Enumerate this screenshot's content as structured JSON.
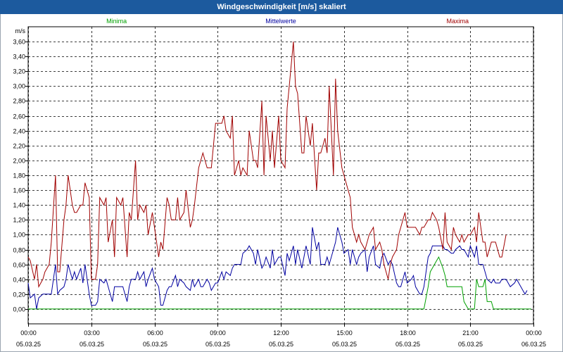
{
  "window": {
    "title": "Windgeschwindigkeit [m/s] skaliert"
  },
  "colors": {
    "title_bar": "#1c5a9e",
    "minima": "#00a000",
    "mittelwerte": "#0000a0",
    "maxima": "#a00000",
    "grid": "#000000"
  },
  "chart_data": {
    "type": "line",
    "title": "Windgeschwindigkeit [m/s] skaliert",
    "ylabel": "m/s",
    "ylim": [
      -0.2,
      3.8
    ],
    "y_ticks": [
      "0,00",
      "0,20",
      "0,40",
      "0,60",
      "0,80",
      "1,00",
      "1,20",
      "1,40",
      "1,60",
      "1,80",
      "2,00",
      "2,20",
      "2,40",
      "2,60",
      "2,80",
      "3,00",
      "3,20",
      "3,40",
      "3,60"
    ],
    "x_ticks": [
      {
        "time": "00:00",
        "date": "05.03.25"
      },
      {
        "time": "03:00",
        "date": "05.03.25"
      },
      {
        "time": "06:00",
        "date": "05.03.25"
      },
      {
        "time": "09:00",
        "date": "05.03.25"
      },
      {
        "time": "12:00",
        "date": "05.03.25"
      },
      {
        "time": "15:00",
        "date": "05.03.25"
      },
      {
        "time": "18:00",
        "date": "05.03.25"
      },
      {
        "time": "21:00",
        "date": "05.03.25"
      },
      {
        "time": "00:00",
        "date": "06.03.25"
      }
    ],
    "x_hours": [
      0,
      0.1,
      0.3,
      0.4,
      0.5,
      0.7,
      0.8,
      1.0,
      1.1,
      1.3,
      1.4,
      1.5,
      1.7,
      1.8,
      1.9,
      2.1,
      2.2,
      2.3,
      2.5,
      2.6,
      2.7,
      2.9,
      3.0,
      3.2,
      3.3,
      3.4,
      3.6,
      3.7,
      3.8,
      4.0,
      4.1,
      4.2,
      4.4,
      4.5,
      4.7,
      4.8,
      4.9,
      5.1,
      5.2,
      5.3,
      5.5,
      5.6,
      5.7,
      5.9,
      6.0,
      6.2,
      6.3,
      6.4,
      6.6,
      6.7,
      6.8,
      7.0,
      7.1,
      7.2,
      7.4,
      7.5,
      7.7,
      7.8,
      7.9,
      8.1,
      8.2,
      8.3,
      8.5,
      8.6,
      8.7,
      8.9,
      9.0,
      9.2,
      9.3,
      9.4,
      9.6,
      9.7,
      9.8,
      10.0,
      10.1,
      10.2,
      10.4,
      10.5,
      10.7,
      10.8,
      10.9,
      11.1,
      11.2,
      11.3,
      11.5,
      11.6,
      11.7,
      11.9,
      12.0,
      12.2,
      12.3,
      12.4,
      12.6,
      12.7,
      12.8,
      13.0,
      13.1,
      13.2,
      13.4,
      13.5,
      13.7,
      13.8,
      13.9,
      14.1,
      14.2,
      14.3,
      14.5,
      14.6,
      14.7,
      14.9,
      15.0,
      15.2,
      15.3,
      15.4,
      15.6,
      15.7,
      15.8,
      16.0,
      16.1,
      16.2,
      16.4,
      16.5,
      16.7,
      16.8,
      16.9,
      17.1,
      17.2,
      17.3,
      17.5,
      17.6,
      17.7,
      17.9,
      18.0,
      18.2,
      18.3,
      18.4,
      18.6,
      18.7,
      18.8,
      19.0,
      19.1,
      19.2,
      19.4,
      19.5,
      19.7,
      19.8,
      19.9,
      20.1,
      20.2,
      20.3,
      20.5,
      20.6,
      20.7,
      20.9,
      21.0,
      21.2,
      21.3,
      21.4,
      21.6,
      21.7,
      21.8,
      22.0,
      22.1,
      22.2,
      22.4,
      22.5,
      22.7,
      22.8,
      22.9,
      23.1,
      23.2,
      23.3,
      23.5,
      23.6,
      23.7,
      23.9
    ],
    "series": [
      {
        "name": "Minima",
        "color": "#00a000",
        "values": [
          0,
          0,
          0,
          0,
          0,
          0,
          0,
          0,
          0,
          0,
          0,
          0,
          0,
          0,
          0,
          0,
          0,
          0,
          0,
          0,
          0,
          0,
          0,
          0,
          0,
          0,
          0,
          0,
          0,
          0,
          0,
          0,
          0,
          0,
          0,
          0,
          0,
          0,
          0,
          0,
          0,
          0,
          0,
          0,
          0,
          0,
          0,
          0,
          0,
          0,
          0,
          0,
          0,
          0,
          0,
          0,
          0,
          0,
          0,
          0,
          0,
          0,
          0,
          0,
          0,
          0,
          0,
          0,
          0,
          0,
          0,
          0,
          0,
          0,
          0,
          0,
          0,
          0,
          0,
          0,
          0,
          0,
          0,
          0,
          0,
          0,
          0,
          0,
          0,
          0,
          0,
          0,
          0,
          0,
          0,
          0,
          0,
          0,
          0,
          0,
          0,
          0,
          0,
          0,
          0,
          0,
          0,
          0,
          0,
          0,
          0,
          0,
          0,
          0,
          0,
          0,
          0,
          0,
          0,
          0,
          0,
          0,
          0,
          0,
          0,
          0,
          0,
          0,
          0,
          0,
          0,
          0,
          0,
          0,
          0,
          0,
          0,
          0,
          0,
          0.3,
          0.5,
          0.55,
          0.65,
          0.7,
          0.55,
          0.45,
          0.3,
          0.3,
          0.3,
          0.3,
          0.3,
          0.3,
          0.1,
          0,
          0,
          0,
          0.4,
          0.3,
          0.3,
          0.4,
          0.1,
          0.1,
          0,
          0,
          0,
          0,
          0,
          0,
          0,
          0,
          0,
          0,
          0,
          0,
          0,
          0
        ]
      },
      {
        "name": "Mittelwerte",
        "color": "#0000a0",
        "values": [
          0.35,
          0.15,
          0.2,
          0.0,
          0.15,
          0.2,
          0.2,
          0.2,
          0.2,
          0.6,
          0.2,
          0.25,
          0.3,
          0.4,
          0.6,
          0.4,
          0.5,
          0.4,
          0.55,
          0.35,
          0.6,
          0.2,
          0.05,
          0.05,
          0.1,
          0.4,
          0.35,
          0.4,
          0.3,
          0.1,
          0.3,
          0.3,
          0.3,
          0.3,
          0.1,
          0.3,
          0.4,
          0.4,
          0.5,
          0.4,
          0.5,
          0.3,
          0.4,
          0.55,
          0.4,
          0.3,
          0.05,
          0.05,
          0.25,
          0.3,
          0.3,
          0.45,
          0.3,
          0.4,
          0.35,
          0.3,
          0.25,
          0.4,
          0.3,
          0.4,
          0.3,
          0.3,
          0.4,
          0.35,
          0.25,
          0.35,
          0.35,
          0.5,
          0.4,
          0.5,
          0.45,
          0.55,
          0.6,
          0.6,
          0.6,
          0.75,
          0.8,
          0.85,
          0.75,
          0.6,
          0.8,
          0.55,
          0.6,
          0.7,
          0.55,
          0.8,
          0.6,
          0.7,
          0.7,
          0.45,
          0.75,
          0.65,
          0.85,
          0.6,
          0.8,
          0.55,
          0.7,
          0.85,
          0.6,
          1.1,
          0.8,
          0.9,
          0.6,
          0.6,
          0.7,
          0.6,
          0.8,
          0.9,
          1.1,
          0.9,
          0.75,
          0.8,
          0.6,
          0.8,
          0.6,
          0.7,
          0.75,
          0.8,
          0.5,
          0.7,
          0.85,
          0.6,
          0.55,
          0.7,
          0.75,
          0.6,
          0.65,
          0.6,
          0.35,
          0.3,
          0.3,
          0.5,
          0.35,
          0.4,
          0.45,
          0.3,
          0.2,
          0.2,
          0.3,
          0.7,
          0.75,
          0.85,
          0.85,
          0.85,
          0.85,
          0.8,
          0.8,
          0.75,
          0.75,
          0.8,
          0.85,
          0.8,
          0.8,
          0.7,
          0.85,
          0.7,
          0.85,
          0.6,
          0.6,
          0.5,
          0.4,
          0.35,
          0.4,
          0.35,
          0.35,
          0.4,
          0.4,
          0.35,
          0.3,
          0.35,
          0.4,
          0.35,
          0.25,
          0.2,
          0.25
        ]
      },
      {
        "name": "Maxima",
        "color": "#a00000",
        "values": [
          0.7,
          0.65,
          0.4,
          0.6,
          0.3,
          0.4,
          0.5,
          0.6,
          0.9,
          1.8,
          0.5,
          0.5,
          1.2,
          1.4,
          1.8,
          1.4,
          1.3,
          1.3,
          1.4,
          1.4,
          1.7,
          1.5,
          0.4,
          0.4,
          0.6,
          1.5,
          1.4,
          1.5,
          0.9,
          1.2,
          0.7,
          1.5,
          1.4,
          1.5,
          0.7,
          1.3,
          1.2,
          2.0,
          1.2,
          1.4,
          1.3,
          1.4,
          1.0,
          1.3,
          1.1,
          0.7,
          0.9,
          0.8,
          1.5,
          1.4,
          1.2,
          1.2,
          1.5,
          1.2,
          1.3,
          1.6,
          1.1,
          1.2,
          1.4,
          1.9,
          2.0,
          2.1,
          1.9,
          1.9,
          1.9,
          2.5,
          2.5,
          2.5,
          2.6,
          2.4,
          2.3,
          2.6,
          1.8,
          2.0,
          1.8,
          1.9,
          1.8,
          2.4,
          2.0,
          2.0,
          1.9,
          2.8,
          1.8,
          2.6,
          2.0,
          2.4,
          1.9,
          2.6,
          2.0,
          1.9,
          2.7,
          3.0,
          3.6,
          3.0,
          2.9,
          2.1,
          2.1,
          2.6,
          2.2,
          2.5,
          1.6,
          2.1,
          2.1,
          2.3,
          2.1,
          3.0,
          1.8,
          3.1,
          2.4,
          1.9,
          1.8,
          1.6,
          1.5,
          1.1,
          0.9,
          1.0,
          0.9,
          0.8,
          0.9,
          1.0,
          1.1,
          0.8,
          0.9,
          0.8,
          0.6,
          0.4,
          0.6,
          0.7,
          0.8,
          1.0,
          1.1,
          1.3,
          1.1,
          1.1,
          1.1,
          1.1,
          1.0,
          1.1,
          1.1,
          1.2,
          1.2,
          1.3,
          1.2,
          1.1,
          0.8,
          1.3,
          0.9,
          0.8,
          1.1,
          1.0,
          0.9,
          1.0,
          0.9,
          1.0,
          1.0,
          1.1,
          0.9,
          1.3,
          0.9,
          0.9,
          0.7,
          0.9,
          0.9,
          0.9,
          0.7,
          0.7,
          1.0
        ]
      }
    ]
  }
}
